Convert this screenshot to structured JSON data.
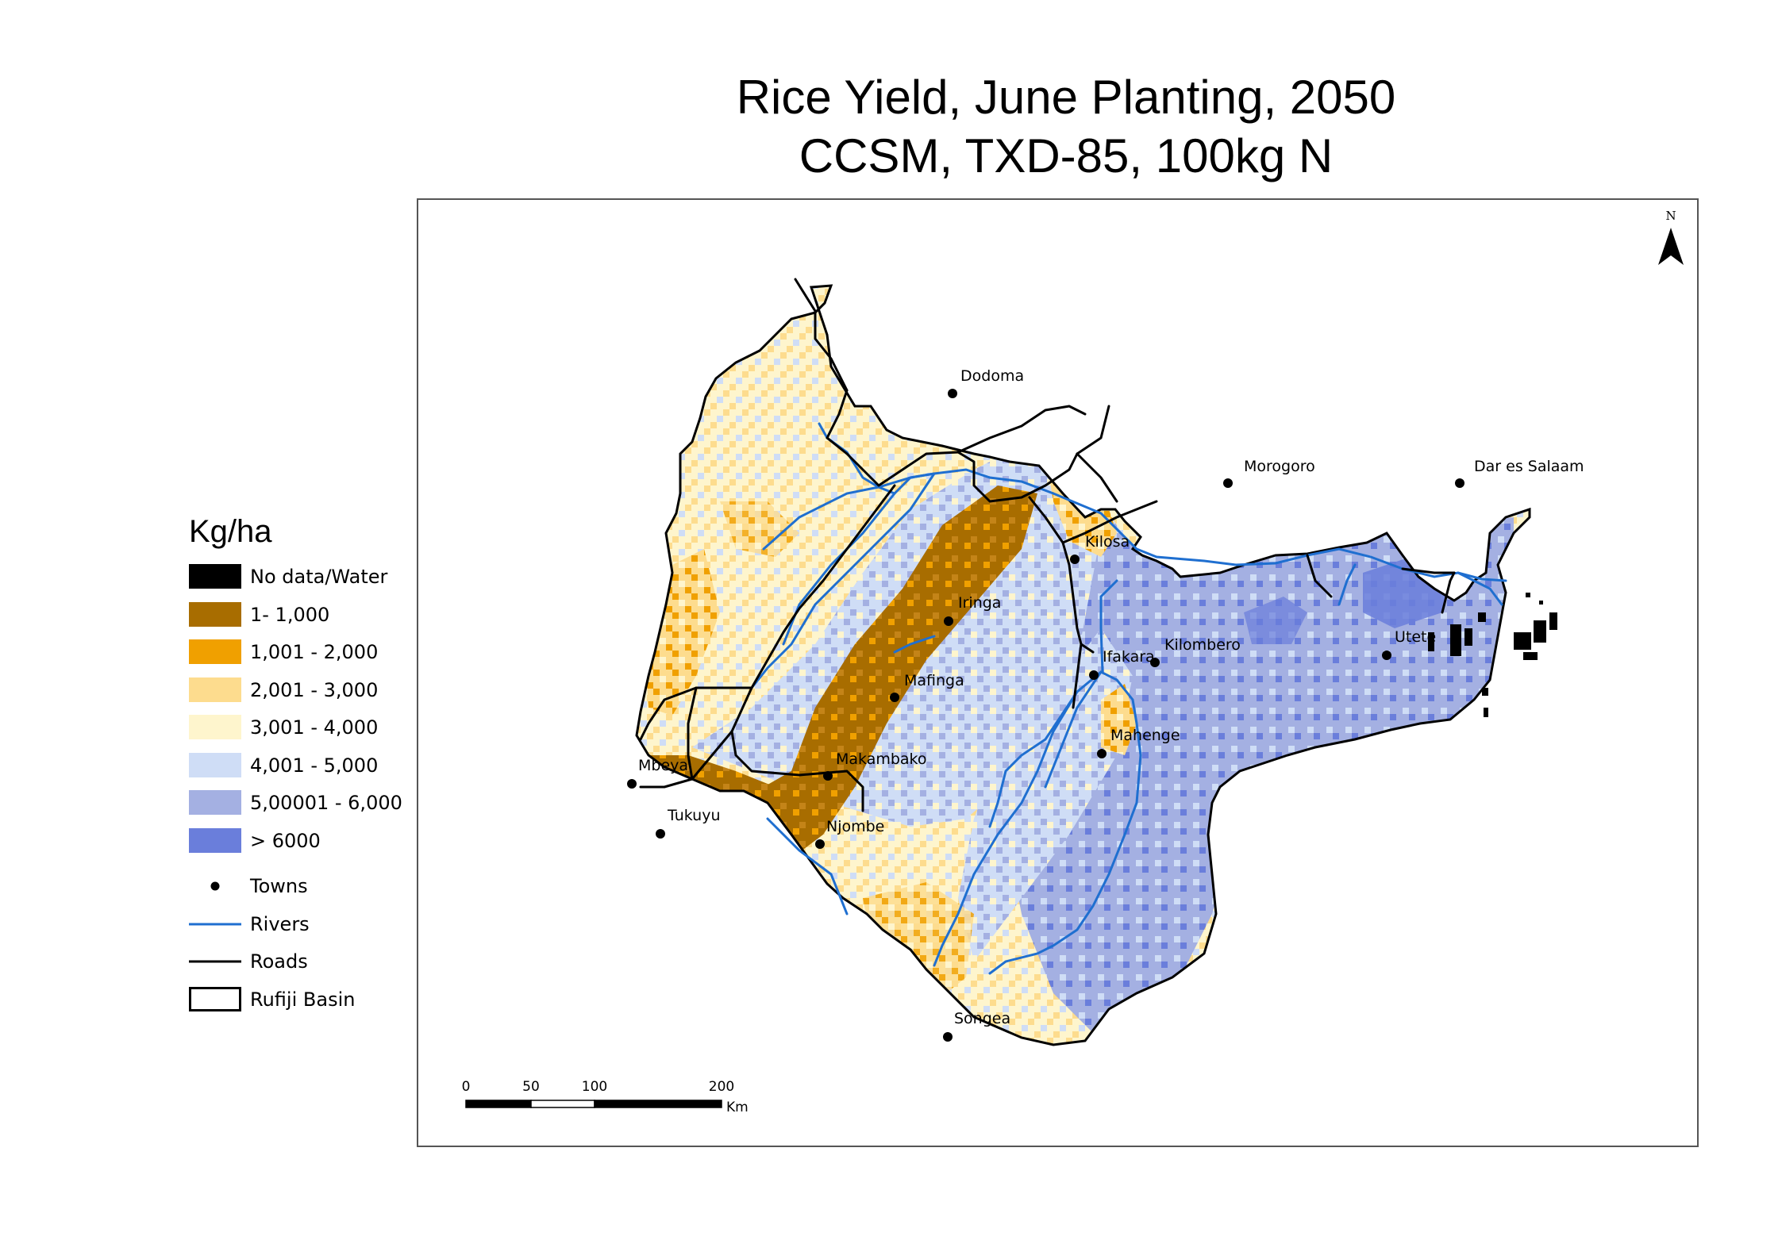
{
  "title": {
    "line1": "Rice Yield, June Planting, 2050",
    "line2": "CCSM, TXD-85, 100kg N"
  },
  "legend": {
    "title": "Kg/ha",
    "classes": [
      {
        "label": "No data/Water",
        "color": "#000000"
      },
      {
        "label": "1- 1,000",
        "color": "#a86d00"
      },
      {
        "label": "1,001 - 2,000",
        "color": "#f0a000"
      },
      {
        "label": "2,001 - 3,000",
        "color": "#fddc8e"
      },
      {
        "label": "3,001 - 4,000",
        "color": "#fef5cd"
      },
      {
        "label": "4,001 - 5,000",
        "color": "#cfddf6"
      },
      {
        "label": "5,00001 - 6,000",
        "color": "#a4b0e2"
      },
      {
        "label": "> 6000",
        "color": "#6a7edb"
      }
    ],
    "symbols": [
      {
        "label": "Towns",
        "icon": "town-dot-icon"
      },
      {
        "label": "Rivers",
        "icon": "river-line-icon",
        "color": "#1f6fd0"
      },
      {
        "label": "Roads",
        "icon": "road-line-icon",
        "color": "#000000"
      },
      {
        "label": "Rufiji Basin",
        "icon": "basin-outline-icon"
      }
    ]
  },
  "north_arrow": {
    "label": "N"
  },
  "scale_bar": {
    "ticks": [
      "0",
      "50",
      "100",
      "200"
    ],
    "unit": "Km"
  },
  "towns": [
    {
      "name": "Dodoma"
    },
    {
      "name": "Morogoro"
    },
    {
      "name": "Dar es Salaam"
    },
    {
      "name": "Kilosa"
    },
    {
      "name": "Iringa"
    },
    {
      "name": "Kilombero"
    },
    {
      "name": "Utete"
    },
    {
      "name": "Ifakara"
    },
    {
      "name": "Mafinga"
    },
    {
      "name": "Mahenge"
    },
    {
      "name": "Makambako"
    },
    {
      "name": "Mbeya"
    },
    {
      "name": "Tukuyu"
    },
    {
      "name": "Njombe"
    },
    {
      "name": "Songea"
    }
  ]
}
